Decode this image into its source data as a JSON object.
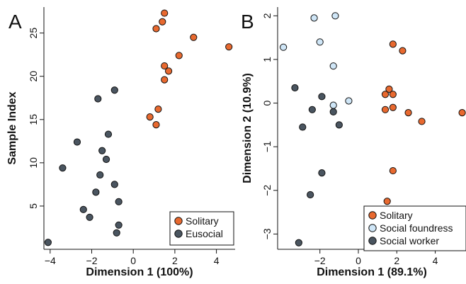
{
  "chart_data": [
    {
      "type": "scatter",
      "panel_label": "A",
      "xlabel": "Dimension 1 (100%)",
      "ylabel": "Sample Index",
      "xlim": [
        -4.3,
        4.9
      ],
      "ylim": [
        0,
        28
      ],
      "xticks": [
        -4,
        -2,
        0,
        2,
        4
      ],
      "yticks": [
        5,
        10,
        15,
        20,
        25
      ],
      "grid": false,
      "legend_position": "bottom-right",
      "series": [
        {
          "name": "Solitary",
          "color": "#e8692f",
          "points": [
            [
              0.8,
              15.3
            ],
            [
              1.1,
              14.4
            ],
            [
              1.2,
              16.2
            ],
            [
              1.5,
              19.6
            ],
            [
              1.5,
              21.2
            ],
            [
              1.7,
              20.6
            ],
            [
              2.2,
              22.4
            ],
            [
              1.1,
              25.5
            ],
            [
              1.4,
              26.3
            ],
            [
              1.5,
              27.3
            ],
            [
              2.9,
              24.5
            ],
            [
              4.6,
              23.4
            ]
          ]
        },
        {
          "name": "Eusocial",
          "color": "#4a5560",
          "points": [
            [
              -4.1,
              0.8
            ],
            [
              -0.8,
              1.9
            ],
            [
              -0.7,
              2.8
            ],
            [
              -2.1,
              3.7
            ],
            [
              -2.4,
              4.6
            ],
            [
              -0.7,
              5.5
            ],
            [
              -1.8,
              6.6
            ],
            [
              -0.9,
              7.5
            ],
            [
              -1.6,
              8.6
            ],
            [
              -3.4,
              9.4
            ],
            [
              -1.3,
              10.4
            ],
            [
              -1.5,
              11.4
            ],
            [
              -2.7,
              12.4
            ],
            [
              -1.2,
              13.3
            ],
            [
              -1.7,
              17.4
            ],
            [
              -0.9,
              18.4
            ]
          ]
        }
      ]
    },
    {
      "type": "scatter",
      "panel_label": "B",
      "xlabel": "Dimension 1 (89.1%)",
      "ylabel": "Dimension 2 (10.9%)",
      "xlim": [
        -4.2,
        5.6
      ],
      "ylim": [
        -3.35,
        2.2
      ],
      "xticks": [
        -2,
        0,
        2,
        4
      ],
      "yticks": [
        -3,
        -2,
        -1,
        0,
        1,
        2
      ],
      "grid": false,
      "legend_position": "bottom-right",
      "series": [
        {
          "name": "Solitary",
          "color": "#e8692f",
          "points": [
            [
              1.8,
              1.35
            ],
            [
              2.3,
              1.2
            ],
            [
              1.6,
              0.32
            ],
            [
              1.4,
              0.2
            ],
            [
              1.8,
              0.2
            ],
            [
              1.4,
              -0.15
            ],
            [
              1.8,
              -0.1
            ],
            [
              2.6,
              -0.22
            ],
            [
              3.3,
              -0.42
            ],
            [
              5.4,
              -0.22
            ],
            [
              1.8,
              -1.55
            ],
            [
              1.5,
              -2.25
            ]
          ]
        },
        {
          "name": "Social foundress",
          "color": "#cfe6f7",
          "points": [
            [
              -2.3,
              1.95
            ],
            [
              -1.2,
              2.0
            ],
            [
              -3.9,
              1.28
            ],
            [
              -2.0,
              1.4
            ],
            [
              -1.3,
              0.85
            ],
            [
              -0.5,
              0.05
            ],
            [
              -1.3,
              -0.05
            ]
          ]
        },
        {
          "name": "Social worker",
          "color": "#4a5560",
          "points": [
            [
              -3.3,
              0.35
            ],
            [
              -1.9,
              0.15
            ],
            [
              -2.4,
              -0.15
            ],
            [
              -1.3,
              -0.2
            ],
            [
              -2.9,
              -0.55
            ],
            [
              -1.0,
              -0.5
            ],
            [
              -1.9,
              -1.6
            ],
            [
              -2.5,
              -2.1
            ],
            [
              -3.1,
              -3.2
            ]
          ]
        }
      ]
    }
  ]
}
